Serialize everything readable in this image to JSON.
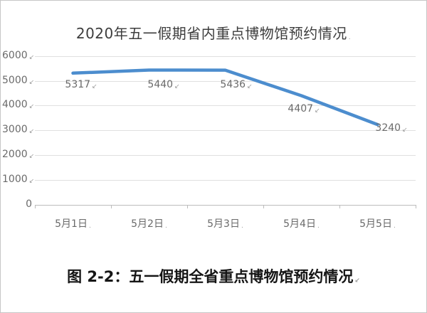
{
  "figure": {
    "title": "2020年五一假期省内重点博物馆预约情况",
    "caption": "图 2-2：五一假期全省重点博物馆预约情况"
  },
  "marks": {
    "return": "↙",
    "dot": "."
  },
  "y_axis": {
    "labels": [
      "6000",
      "5000",
      "4000",
      "3000",
      "2000",
      "1000",
      "0"
    ]
  },
  "x_axis": {
    "labels": [
      "5月1日",
      "5月2日",
      "5月3日",
      "5月4日",
      "5月5日"
    ]
  },
  "data_labels": [
    "5317",
    "5440",
    "5436",
    "4407",
    "3240"
  ],
  "chart_data": {
    "type": "line",
    "title": "2020年五一假期省内重点博物馆预约情况",
    "categories": [
      "5月1日",
      "5月2日",
      "5月3日",
      "5月4日",
      "5月5日"
    ],
    "values": [
      5317,
      5440,
      5436,
      4407,
      3240
    ],
    "xlabel": "",
    "ylabel": "",
    "ylim": [
      0,
      6000
    ],
    "yticks": [
      0,
      1000,
      2000,
      3000,
      4000,
      5000,
      6000
    ],
    "grid": true,
    "legend": false,
    "line_color": "#4c8dce",
    "data_labels_shown": true
  }
}
